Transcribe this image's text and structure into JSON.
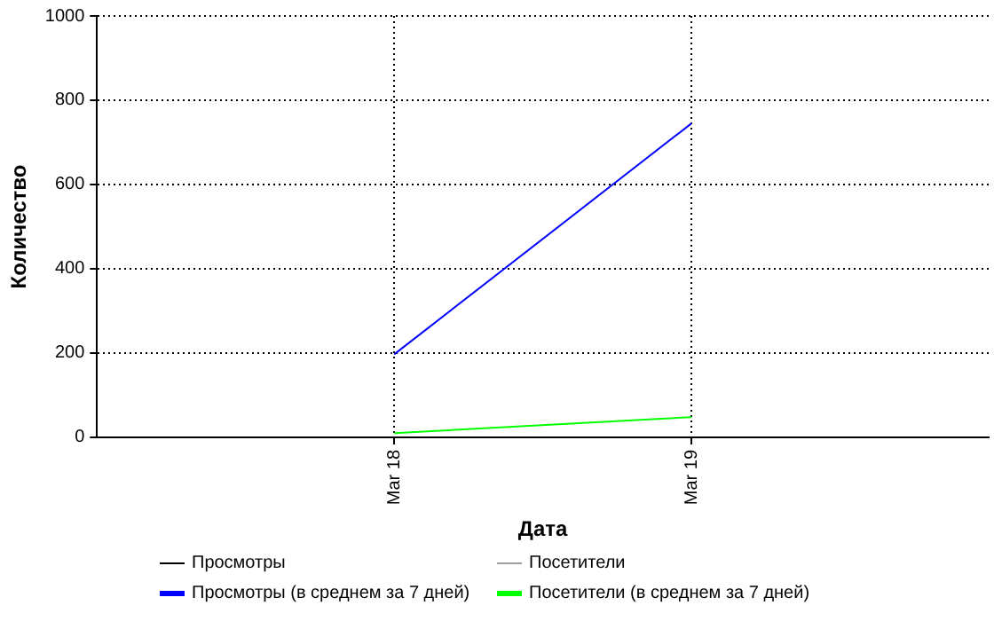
{
  "chart_data": {
    "type": "line",
    "xlabel": "Дата",
    "ylabel": "Количество",
    "x": [
      "--03-18",
      "--03-19"
    ],
    "xlim": [
      "--03-17",
      "--03-20"
    ],
    "xticks": [
      {
        "value": "--03-18",
        "label": "Mar 18"
      },
      {
        "value": "--03-19",
        "label": "Mar 19"
      }
    ],
    "ylim": [
      0,
      1000
    ],
    "yticks": [
      0,
      200,
      400,
      600,
      800,
      1000
    ],
    "grid": true,
    "legend": "bottom",
    "marker": "none",
    "line_style": "solid",
    "series": [
      {
        "name": "Просмотры",
        "color": "#000000",
        "values": [
          null,
          null
        ]
      },
      {
        "name": "Посетители",
        "color": "#a0a0a0",
        "values": [
          null,
          null
        ]
      },
      {
        "name": "Просмотры (в среднем за 7 дней)",
        "color": "#0000ff",
        "values": [
          197,
          745
        ]
      },
      {
        "name": "Посетители (в среднем за 7 дней)",
        "color": "#00ff00",
        "values": [
          10,
          48
        ]
      }
    ]
  }
}
